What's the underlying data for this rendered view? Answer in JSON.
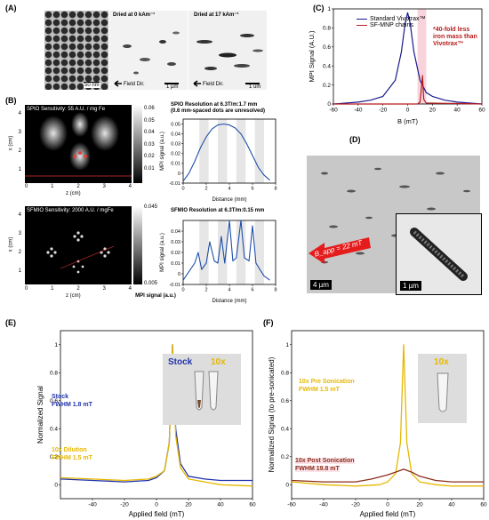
{
  "panelA": {
    "label": "(A)",
    "img1_scale": "50 nm",
    "img2_title": "Dried at 0 kAm⁻¹",
    "img2_scale": "1 µm",
    "img2_field": "Field Dir.",
    "img3_title": "Dried at 17 kAm⁻¹",
    "img3_scale": "1 um",
    "img3_field": "Field Dir."
  },
  "panelB": {
    "label": "(B)",
    "spio_title": "SPIO Sensitivity: 55 A.U. / mg Fe",
    "sfmio_title": "SFMIO Sensitivity: 2000 A.U. / mgFe",
    "spio_colorbar": [
      "0.06",
      "0.05",
      "0.04",
      "0.03",
      "0.02",
      "0.01"
    ],
    "sfmio_colorbar": [
      "0.045",
      "0.005"
    ],
    "colorbar_title": "MPI signal (a.u.)",
    "img_xlabel": "z (cm)",
    "img_ylabel": "x (cm)",
    "img_xticks": [
      "0",
      "1",
      "2",
      "3",
      "4"
    ],
    "img_yticks": [
      "4",
      "3",
      "2",
      "1",
      "0"
    ],
    "spio_res_title": "SPIO Resolution at 6.3T/m:1.7 mm",
    "spio_res_sub": "(0.6 mm-spaced dots are unresolved)",
    "sfmio_res_title": "SFMIO Resolution at 6.3T/m:0.15 mm",
    "res_xlabel": "Distance (mm)",
    "res_ylabel": "MPI signal (a.u.)"
  },
  "panelC": {
    "label": "(C)",
    "legend": [
      "Standard Vivotrax™",
      "SF-MNP chains"
    ],
    "annotation": [
      "*40-fold less",
      "iron mass than",
      "Vivotrax™"
    ]
  },
  "panelD": {
    "label": "(D)",
    "bapp": "B_app = 22 mT",
    "scale_main": "4 µm",
    "scale_inset": "1 µm"
  },
  "panelE": {
    "label": "(E)",
    "legend_stock": "Stock",
    "legend_10x": "10x",
    "stock_label": "Stock",
    "stock_fwhm": "FWHM 1.8 mT",
    "dil_label": "10x Dilution",
    "dil_fwhm": "FWHM 1.5 mT"
  },
  "panelF": {
    "label": "(F)",
    "legend_10x": "10x",
    "pre_label": "10x Pre Sonication",
    "pre_fwhm": "FWHM 1.5 mT",
    "post_label": "10x Post Sonication",
    "post_fwhm": "FWHM 19.8 mT"
  },
  "chart_data": [
    {
      "type": "line",
      "id": "C",
      "xlabel": "B (mT)",
      "ylabel": "MPI Signal (A.U.)",
      "xlim": [
        -60,
        60
      ],
      "ylim": [
        0,
        1.0
      ],
      "xticks": [
        -60,
        -40,
        -20,
        0,
        20,
        40,
        60
      ],
      "yticks": [
        0,
        0.2,
        0.4,
        0.6,
        0.8,
        1.0
      ],
      "series": [
        {
          "name": "Standard Vivotrax™",
          "color": "#1a1a8c",
          "x": [
            -60,
            -40,
            -30,
            -20,
            -10,
            -5,
            -2,
            0,
            2,
            5,
            10,
            15,
            20,
            30,
            40,
            60
          ],
          "y": [
            0.0,
            0.02,
            0.04,
            0.08,
            0.25,
            0.55,
            0.85,
            0.96,
            0.85,
            0.55,
            0.25,
            0.12,
            0.08,
            0.04,
            0.02,
            0.0
          ]
        },
        {
          "name": "SF-MNP chains",
          "color": "#b71c1c",
          "x": [
            -60,
            0,
            8,
            10,
            11,
            12,
            13,
            15,
            60
          ],
          "y": [
            0.0,
            0.0,
            0.0,
            0.02,
            0.15,
            0.3,
            0.05,
            0.01,
            0.0
          ]
        }
      ]
    },
    {
      "type": "line",
      "id": "B-spio",
      "xlabel": "Distance (mm)",
      "ylabel": "MPI signal (a.u.)",
      "xlim": [
        0,
        8
      ],
      "ylim": [
        -0.01,
        0.055
      ],
      "xticks": [
        0,
        2,
        4,
        6,
        8
      ],
      "yticks": [
        -0.01,
        0,
        0.01,
        0.02,
        0.03,
        0.04,
        0.05
      ],
      "series": [
        {
          "color": "#1f4fa8",
          "x": [
            0,
            0.5,
            1,
            1.5,
            2,
            2.5,
            3,
            3.5,
            4,
            4.5,
            5,
            5.5,
            6,
            6.5,
            7,
            7.5
          ],
          "y": [
            -0.008,
            0.0,
            0.012,
            0.026,
            0.037,
            0.045,
            0.049,
            0.05,
            0.049,
            0.046,
            0.04,
            0.03,
            0.018,
            0.006,
            -0.002,
            -0.007
          ]
        }
      ]
    },
    {
      "type": "line",
      "id": "B-sfmio",
      "xlabel": "Distance (mm)",
      "ylabel": "MPI signal (a.u.)",
      "xlim": [
        0,
        8
      ],
      "ylim": [
        -0.01,
        0.05
      ],
      "xticks": [
        0,
        2,
        4,
        6,
        8
      ],
      "yticks": [
        -0.01,
        0,
        0.01,
        0.02,
        0.03,
        0.04
      ],
      "series": [
        {
          "color": "#1f4fa8",
          "x": [
            0,
            0.5,
            1,
            1.3,
            1.6,
            2,
            2.3,
            2.7,
            3,
            3.3,
            3.6,
            4,
            4.3,
            4.6,
            5,
            5.3,
            5.7,
            6,
            6.3,
            6.7,
            7,
            7.5
          ],
          "y": [
            -0.006,
            0.002,
            0.01,
            0.02,
            0.004,
            0.01,
            0.03,
            0.012,
            0.01,
            0.035,
            0.01,
            0.05,
            0.012,
            0.015,
            0.05,
            0.015,
            0.012,
            0.045,
            0.01,
            0.003,
            -0.002,
            -0.006
          ]
        }
      ]
    },
    {
      "type": "line",
      "id": "E",
      "xlabel": "Applied field (mT)",
      "ylabel": "Normalized Signal",
      "xlim": [
        -60,
        60
      ],
      "ylim": [
        -0.1,
        1.1
      ],
      "xticks": [
        -40,
        -20,
        0,
        20,
        40,
        60
      ],
      "yticks": [
        0,
        0.2,
        0.4,
        0.6,
        0.8,
        1
      ],
      "series": [
        {
          "name": "Stock",
          "color": "#2233aa",
          "x": [
            -60,
            -40,
            -20,
            -5,
            0,
            5,
            8,
            10,
            12,
            15,
            20,
            30,
            40,
            60
          ],
          "y": [
            0.04,
            0.03,
            0.02,
            0.03,
            0.05,
            0.1,
            0.3,
            1.0,
            0.4,
            0.15,
            0.06,
            0.04,
            0.03,
            0.03
          ]
        },
        {
          "name": "10x Dilution",
          "color": "#e6b800",
          "x": [
            -60,
            -40,
            -20,
            -5,
            0,
            5,
            8,
            10,
            12,
            15,
            20,
            30,
            40,
            60
          ],
          "y": [
            0.05,
            0.04,
            0.03,
            0.04,
            0.06,
            0.1,
            0.3,
            1.0,
            0.35,
            0.12,
            0.04,
            0.02,
            0.0,
            -0.01
          ]
        }
      ]
    },
    {
      "type": "line",
      "id": "F",
      "xlabel": "Applied field (mT)",
      "ylabel": "Normalized Signal (to pre-sonicated)",
      "xlim": [
        -60,
        60
      ],
      "ylim": [
        -0.1,
        1.1
      ],
      "xticks": [
        -60,
        -40,
        -20,
        0,
        20,
        40,
        60
      ],
      "yticks": [
        0,
        0.2,
        0.4,
        0.6,
        0.8,
        1
      ],
      "series": [
        {
          "name": "10x Pre Sonication",
          "color": "#e6b800",
          "x": [
            -60,
            -40,
            -20,
            -5,
            0,
            5,
            8,
            10,
            12,
            15,
            20,
            30,
            40,
            60
          ],
          "y": [
            0.02,
            0.0,
            -0.01,
            0.0,
            0.02,
            0.08,
            0.3,
            1.0,
            0.3,
            0.08,
            0.02,
            0.0,
            -0.01,
            -0.01
          ]
        },
        {
          "name": "10x Post Sonication",
          "color": "#8b2e1a",
          "x": [
            -60,
            -40,
            -20,
            -10,
            0,
            5,
            10,
            15,
            20,
            30,
            40,
            60
          ],
          "y": [
            0.03,
            0.02,
            0.02,
            0.04,
            0.07,
            0.09,
            0.11,
            0.09,
            0.06,
            0.03,
            0.02,
            0.02
          ]
        }
      ]
    }
  ]
}
